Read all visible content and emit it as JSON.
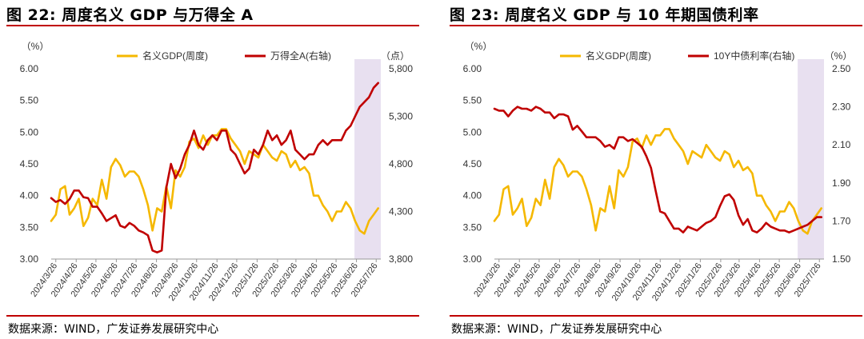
{
  "colors": {
    "gdp": "#f5b800",
    "index": "#c00000",
    "yield": "#c00000",
    "shade": "#e8e0f0",
    "rule": "#c00000"
  },
  "chart_data": [
    {
      "type": "line",
      "title": "图 22: 周度名义 GDP 与万得全 A",
      "source": "数据来源：WIND，广发证券发展研究中心",
      "left_unit": "（%）",
      "right_unit": "（点）",
      "ylim": [
        3.0,
        6.0
      ],
      "y2lim": [
        3800,
        5800
      ],
      "yticks": [
        "3.00",
        "3.50",
        "4.00",
        "4.50",
        "5.00",
        "5.50",
        "6.00"
      ],
      "y2ticks": [
        "3,800",
        "4,300",
        "4,800",
        "5,300",
        "5,800"
      ],
      "x_range": [
        "2024-03-19",
        "2025-08-02"
      ],
      "shade_range": [
        "2025-06-23",
        "2025-08-02"
      ],
      "xticks": [
        "2024/3/26",
        "2024/4/26",
        "2024/5/26",
        "2024/6/26",
        "2024/7/26",
        "2024/8/26",
        "2024/9/26",
        "2024/10/26",
        "2024/11/26",
        "2024/12/26",
        "2025/1/26",
        "2025/2/26",
        "2025/3/26",
        "2025/4/26",
        "2025/5/26",
        "2025/6/26",
        "2025/7/26"
      ],
      "series": [
        {
          "name": "名义GDP(周度)",
          "axis": "left",
          "x": [
            "2024-03-19",
            "2024-03-26",
            "2024-04-02",
            "2024-04-09",
            "2024-04-16",
            "2024-04-23",
            "2024-04-30",
            "2024-05-07",
            "2024-05-14",
            "2024-05-21",
            "2024-05-28",
            "2024-06-04",
            "2024-06-11",
            "2024-06-18",
            "2024-06-25",
            "2024-07-02",
            "2024-07-09",
            "2024-07-16",
            "2024-07-23",
            "2024-07-30",
            "2024-08-06",
            "2024-08-13",
            "2024-08-20",
            "2024-08-27",
            "2024-09-03",
            "2024-09-10",
            "2024-09-17",
            "2024-09-24",
            "2024-10-01",
            "2024-10-08",
            "2024-10-15",
            "2024-10-22",
            "2024-10-29",
            "2024-11-05",
            "2024-11-12",
            "2024-11-19",
            "2024-11-26",
            "2024-12-03",
            "2024-12-10",
            "2024-12-17",
            "2024-12-24",
            "2024-12-31",
            "2025-01-07",
            "2025-01-14",
            "2025-01-21",
            "2025-01-28",
            "2025-02-04",
            "2025-02-11",
            "2025-02-18",
            "2025-02-25",
            "2025-03-04",
            "2025-03-11",
            "2025-03-18",
            "2025-03-25",
            "2025-04-01",
            "2025-04-08",
            "2025-04-15",
            "2025-04-22",
            "2025-04-29",
            "2025-05-06",
            "2025-05-13",
            "2025-05-20",
            "2025-05-27",
            "2025-06-03",
            "2025-06-10",
            "2025-06-17",
            "2025-06-24",
            "2025-07-01",
            "2025-07-08",
            "2025-07-15",
            "2025-07-22",
            "2025-07-29"
          ],
          "y": [
            3.6,
            3.7,
            4.1,
            4.15,
            3.7,
            3.8,
            3.95,
            3.52,
            3.65,
            3.95,
            3.85,
            4.25,
            3.95,
            4.45,
            4.58,
            4.48,
            4.3,
            4.38,
            4.38,
            4.3,
            4.1,
            3.85,
            3.45,
            3.8,
            3.75,
            4.15,
            3.8,
            4.4,
            4.3,
            4.45,
            4.85,
            4.9,
            4.75,
            4.95,
            4.8,
            4.95,
            4.95,
            5.05,
            5.05,
            4.9,
            4.8,
            4.7,
            4.5,
            4.7,
            4.65,
            4.6,
            4.8,
            4.7,
            4.6,
            4.55,
            4.7,
            4.65,
            4.45,
            4.55,
            4.4,
            4.45,
            4.35,
            4.0,
            4.0,
            3.85,
            3.75,
            3.6,
            3.75,
            3.75,
            3.9,
            3.8,
            3.6,
            3.45,
            3.4,
            3.6,
            3.7,
            3.8
          ]
        },
        {
          "name": "万得全A(右轴)",
          "axis": "right",
          "x": [
            "2024-03-19",
            "2024-03-26",
            "2024-04-02",
            "2024-04-09",
            "2024-04-16",
            "2024-04-23",
            "2024-04-30",
            "2024-05-07",
            "2024-05-14",
            "2024-05-21",
            "2024-05-28",
            "2024-06-04",
            "2024-06-11",
            "2024-06-18",
            "2024-06-25",
            "2024-07-02",
            "2024-07-09",
            "2024-07-16",
            "2024-07-23",
            "2024-07-30",
            "2024-08-06",
            "2024-08-13",
            "2024-08-20",
            "2024-08-27",
            "2024-09-03",
            "2024-09-10",
            "2024-09-17",
            "2024-09-24",
            "2024-10-01",
            "2024-10-08",
            "2024-10-15",
            "2024-10-22",
            "2024-10-29",
            "2024-11-05",
            "2024-11-12",
            "2024-11-19",
            "2024-11-26",
            "2024-12-03",
            "2024-12-10",
            "2024-12-17",
            "2024-12-24",
            "2024-12-31",
            "2025-01-07",
            "2025-01-14",
            "2025-01-21",
            "2025-01-28",
            "2025-02-04",
            "2025-02-11",
            "2025-02-18",
            "2025-02-25",
            "2025-03-04",
            "2025-03-11",
            "2025-03-18",
            "2025-03-25",
            "2025-04-01",
            "2025-04-08",
            "2025-04-15",
            "2025-04-22",
            "2025-04-29",
            "2025-05-06",
            "2025-05-13",
            "2025-05-20",
            "2025-05-27",
            "2025-06-03",
            "2025-06-10",
            "2025-06-17",
            "2025-06-24",
            "2025-07-01",
            "2025-07-08",
            "2025-07-15",
            "2025-07-22",
            "2025-07-29"
          ],
          "y": [
            4440,
            4400,
            4420,
            4380,
            4430,
            4520,
            4520,
            4450,
            4440,
            4350,
            4350,
            4280,
            4200,
            4230,
            4260,
            4150,
            4130,
            4180,
            4150,
            4100,
            4080,
            4050,
            3890,
            3870,
            3890,
            4550,
            4800,
            4650,
            4750,
            4900,
            5000,
            5150,
            5000,
            4950,
            5050,
            5100,
            5050,
            5150,
            5150,
            4950,
            4900,
            4800,
            4700,
            4750,
            4950,
            4900,
            5000,
            5150,
            5050,
            5100,
            5000,
            5050,
            5150,
            4950,
            4900,
            4850,
            4900,
            4900,
            5000,
            5050,
            5000,
            5050,
            5050,
            5050,
            5150,
            5200,
            5300,
            5400,
            5450,
            5500,
            5600,
            5650
          ]
        }
      ]
    },
    {
      "type": "line",
      "title": "图 23: 周度名义 GDP 与 10 年期国债利率",
      "source": "数据来源：WIND，广发证券发展研究中心",
      "left_unit": "（%）",
      "right_unit": "（%）",
      "ylim": [
        3.0,
        6.0
      ],
      "y2lim": [
        1.5,
        2.5
      ],
      "yticks": [
        "3.00",
        "3.50",
        "4.00",
        "4.50",
        "5.00",
        "5.50",
        "6.00"
      ],
      "y2ticks": [
        "1.50",
        "1.70",
        "1.90",
        "2.10",
        "2.30",
        "2.50"
      ],
      "x_range": [
        "2024-03-19",
        "2025-08-02"
      ],
      "shade_range": [
        "2025-06-23",
        "2025-08-02"
      ],
      "xticks": [
        "2024/3/26",
        "2024/4/26",
        "2024/5/26",
        "2024/6/26",
        "2024/7/26",
        "2024/8/26",
        "2024/9/26",
        "2024/10/26",
        "2024/11/26",
        "2024/12/26",
        "2025/1/26",
        "2025/2/26",
        "2025/3/26",
        "2025/4/26",
        "2025/5/26",
        "2025/6/26",
        "2025/7/26"
      ],
      "series": [
        {
          "name": "名义GDP(周度)",
          "axis": "left",
          "x": [
            "2024-03-19",
            "2024-03-26",
            "2024-04-02",
            "2024-04-09",
            "2024-04-16",
            "2024-04-23",
            "2024-04-30",
            "2024-05-07",
            "2024-05-14",
            "2024-05-21",
            "2024-05-28",
            "2024-06-04",
            "2024-06-11",
            "2024-06-18",
            "2024-06-25",
            "2024-07-02",
            "2024-07-09",
            "2024-07-16",
            "2024-07-23",
            "2024-07-30",
            "2024-08-06",
            "2024-08-13",
            "2024-08-20",
            "2024-08-27",
            "2024-09-03",
            "2024-09-10",
            "2024-09-17",
            "2024-09-24",
            "2024-10-01",
            "2024-10-08",
            "2024-10-15",
            "2024-10-22",
            "2024-10-29",
            "2024-11-05",
            "2024-11-12",
            "2024-11-19",
            "2024-11-26",
            "2024-12-03",
            "2024-12-10",
            "2024-12-17",
            "2024-12-24",
            "2024-12-31",
            "2025-01-07",
            "2025-01-14",
            "2025-01-21",
            "2025-01-28",
            "2025-02-04",
            "2025-02-11",
            "2025-02-18",
            "2025-02-25",
            "2025-03-04",
            "2025-03-11",
            "2025-03-18",
            "2025-03-25",
            "2025-04-01",
            "2025-04-08",
            "2025-04-15",
            "2025-04-22",
            "2025-04-29",
            "2025-05-06",
            "2025-05-13",
            "2025-05-20",
            "2025-05-27",
            "2025-06-03",
            "2025-06-10",
            "2025-06-17",
            "2025-06-24",
            "2025-07-01",
            "2025-07-08",
            "2025-07-15",
            "2025-07-22",
            "2025-07-29"
          ],
          "y": [
            3.6,
            3.7,
            4.1,
            4.15,
            3.7,
            3.8,
            3.95,
            3.52,
            3.65,
            3.95,
            3.85,
            4.25,
            3.95,
            4.45,
            4.58,
            4.48,
            4.3,
            4.38,
            4.38,
            4.3,
            4.1,
            3.85,
            3.45,
            3.8,
            3.75,
            4.15,
            3.8,
            4.4,
            4.3,
            4.45,
            4.85,
            4.9,
            4.75,
            4.95,
            4.8,
            4.95,
            4.95,
            5.05,
            5.05,
            4.9,
            4.8,
            4.7,
            4.5,
            4.7,
            4.65,
            4.6,
            4.8,
            4.7,
            4.6,
            4.55,
            4.7,
            4.65,
            4.45,
            4.55,
            4.4,
            4.45,
            4.35,
            4.0,
            4.0,
            3.85,
            3.75,
            3.6,
            3.75,
            3.75,
            3.9,
            3.8,
            3.6,
            3.45,
            3.4,
            3.6,
            3.7,
            3.8
          ]
        },
        {
          "name": "10Y中债利率(右轴)",
          "axis": "right",
          "x": [
            "2024-03-19",
            "2024-03-26",
            "2024-04-02",
            "2024-04-09",
            "2024-04-16",
            "2024-04-23",
            "2024-04-30",
            "2024-05-07",
            "2024-05-14",
            "2024-05-21",
            "2024-05-28",
            "2024-06-04",
            "2024-06-11",
            "2024-06-18",
            "2024-06-25",
            "2024-07-02",
            "2024-07-09",
            "2024-07-16",
            "2024-07-23",
            "2024-07-30",
            "2024-08-06",
            "2024-08-13",
            "2024-08-20",
            "2024-08-27",
            "2024-09-03",
            "2024-09-10",
            "2024-09-17",
            "2024-09-24",
            "2024-10-01",
            "2024-10-08",
            "2024-10-15",
            "2024-10-22",
            "2024-10-29",
            "2024-11-05",
            "2024-11-12",
            "2024-11-19",
            "2024-11-26",
            "2024-12-03",
            "2024-12-10",
            "2024-12-17",
            "2024-12-24",
            "2024-12-31",
            "2025-01-07",
            "2025-01-14",
            "2025-01-21",
            "2025-01-28",
            "2025-02-04",
            "2025-02-11",
            "2025-02-18",
            "2025-02-25",
            "2025-03-04",
            "2025-03-11",
            "2025-03-18",
            "2025-03-25",
            "2025-04-01",
            "2025-04-08",
            "2025-04-15",
            "2025-04-22",
            "2025-04-29",
            "2025-05-06",
            "2025-05-13",
            "2025-05-20",
            "2025-05-27",
            "2025-06-03",
            "2025-06-10",
            "2025-06-17",
            "2025-06-24",
            "2025-07-01",
            "2025-07-08",
            "2025-07-15",
            "2025-07-22",
            "2025-07-29"
          ],
          "y": [
            2.29,
            2.28,
            2.28,
            2.25,
            2.28,
            2.3,
            2.29,
            2.29,
            2.28,
            2.3,
            2.29,
            2.27,
            2.27,
            2.24,
            2.26,
            2.26,
            2.25,
            2.18,
            2.2,
            2.17,
            2.14,
            2.14,
            2.14,
            2.12,
            2.09,
            2.1,
            2.08,
            2.14,
            2.14,
            2.12,
            2.13,
            2.11,
            2.09,
            2.04,
            1.98,
            1.86,
            1.75,
            1.74,
            1.7,
            1.66,
            1.66,
            1.64,
            1.67,
            1.66,
            1.65,
            1.67,
            1.69,
            1.7,
            1.72,
            1.78,
            1.83,
            1.84,
            1.81,
            1.73,
            1.68,
            1.71,
            1.65,
            1.64,
            1.66,
            1.69,
            1.67,
            1.66,
            1.65,
            1.65,
            1.64,
            1.65,
            1.66,
            1.67,
            1.68,
            1.7,
            1.72,
            1.72
          ]
        }
      ]
    }
  ]
}
